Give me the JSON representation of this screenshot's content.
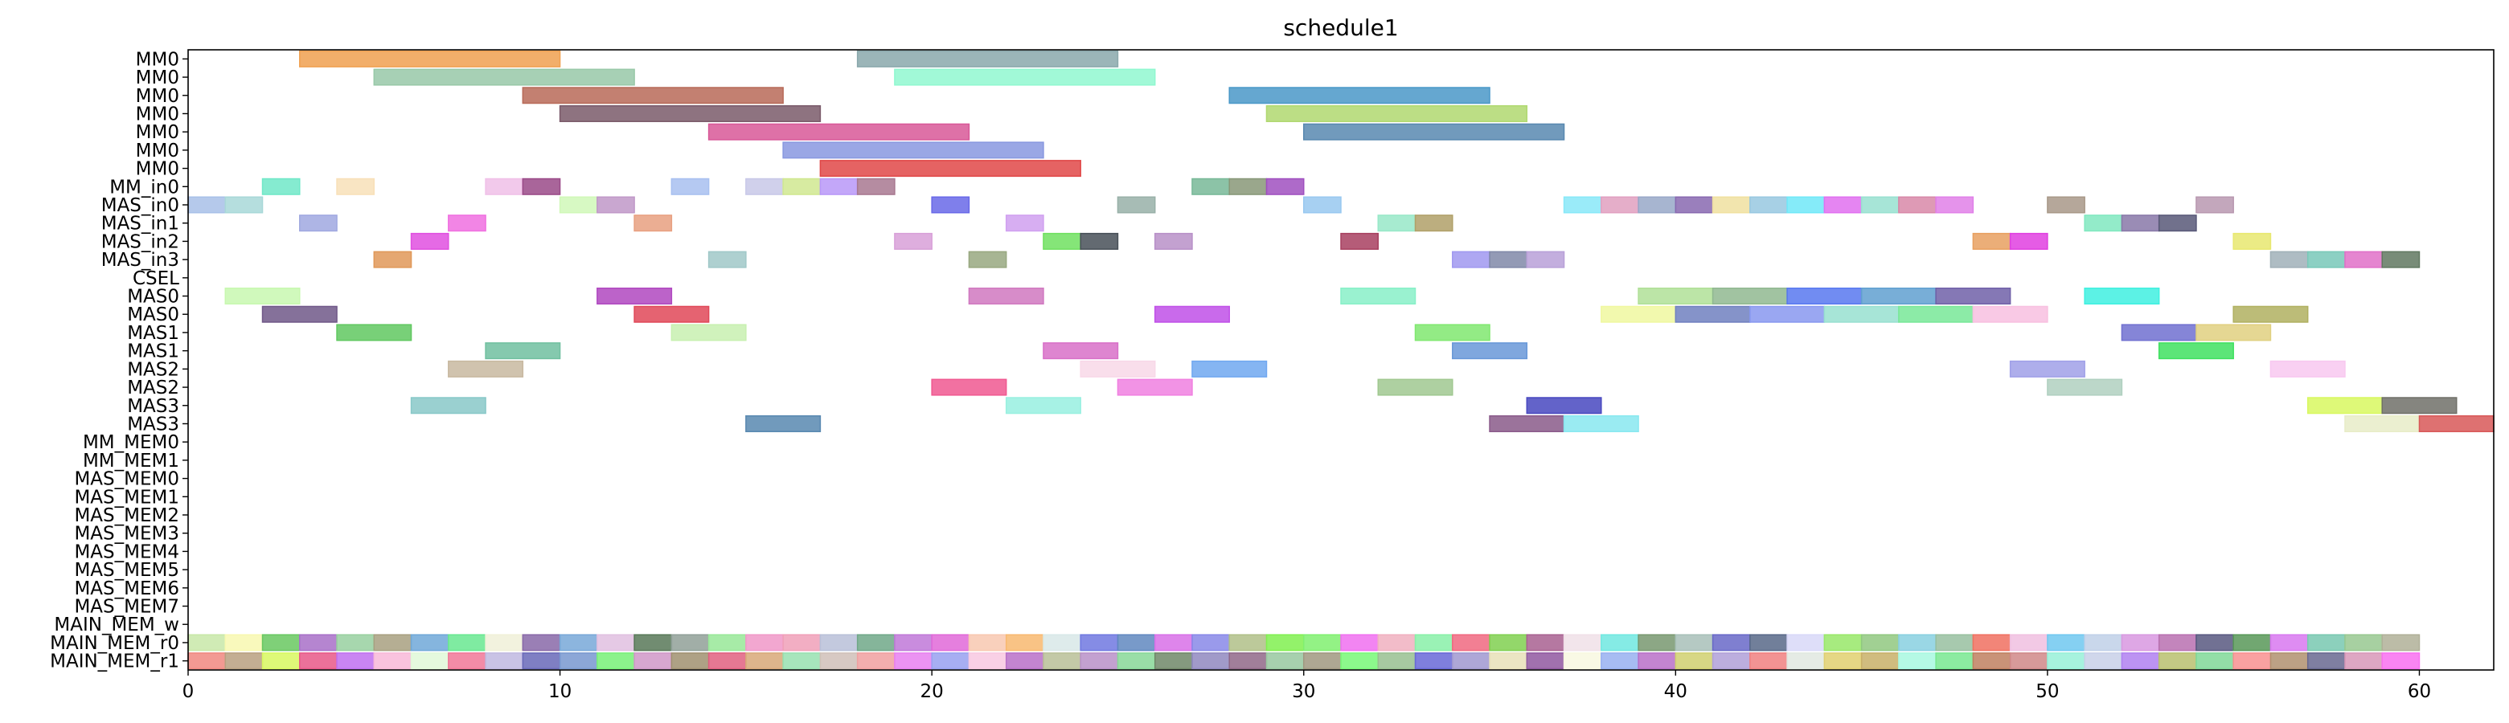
{
  "chart_data": {
    "type": "gantt",
    "title": "schedule1",
    "xlabel": "",
    "ylabel": "",
    "xlim": [
      0,
      62
    ],
    "x_ticks": [
      0,
      10,
      20,
      30,
      40,
      50,
      60
    ],
    "grid": false,
    "legend": "none",
    "rows": [
      "MM0",
      "MM0",
      "MM0",
      "MM0",
      "MM0",
      "MM0",
      "MM0",
      "MM_in0",
      "MAS_in0",
      "MAS_in1",
      "MAS_in2",
      "MAS_in3",
      "CSEL",
      "MAS0",
      "MAS0",
      "MAS1",
      "MAS1",
      "MAS2",
      "MAS2",
      "MAS3",
      "MAS3",
      "MM_MEM0",
      "MM_MEM1",
      "MAS_MEM0",
      "MAS_MEM1",
      "MAS_MEM2",
      "MAS_MEM3",
      "MAS_MEM4",
      "MAS_MEM5",
      "MAS_MEM6",
      "MAS_MEM7",
      "MAIN_MEM_w",
      "MAIN_MEM_r0",
      "MAIN_MEM_r1"
    ],
    "tasks": [
      {
        "row": 0,
        "start": 3,
        "end": 10,
        "color": "#f0a050"
      },
      {
        "row": 0,
        "start": 18,
        "end": 25,
        "color": "#8aa8ac"
      },
      {
        "row": 1,
        "start": 5,
        "end": 12,
        "color": "#98c8a8"
      },
      {
        "row": 1,
        "start": 19,
        "end": 26,
        "color": "#90f8d0"
      },
      {
        "row": 2,
        "start": 9,
        "end": 16,
        "color": "#b86a58"
      },
      {
        "row": 2,
        "start": 28,
        "end": 35,
        "color": "#4a98c8"
      },
      {
        "row": 3,
        "start": 10,
        "end": 17,
        "color": "#7a5a6a"
      },
      {
        "row": 3,
        "start": 29,
        "end": 36,
        "color": "#b0d870"
      },
      {
        "row": 4,
        "start": 14,
        "end": 21,
        "color": "#d85898"
      },
      {
        "row": 4,
        "start": 30,
        "end": 37,
        "color": "#5888b0"
      },
      {
        "row": 5,
        "start": 16,
        "end": 23,
        "color": "#8898e0"
      },
      {
        "row": 6,
        "start": 17,
        "end": 24,
        "color": "#e04848"
      },
      {
        "row": 7,
        "start": 2,
        "end": 3,
        "color": "#70e8c8"
      },
      {
        "row": 7,
        "start": 4,
        "end": 5,
        "color": "#f8e0b8"
      },
      {
        "row": 7,
        "start": 8,
        "end": 9,
        "color": "#f0c0e8"
      },
      {
        "row": 7,
        "start": 9,
        "end": 10,
        "color": "#9a4a88"
      },
      {
        "row": 7,
        "start": 13,
        "end": 14,
        "color": "#a8c0f0"
      },
      {
        "row": 7,
        "start": 15,
        "end": 16,
        "color": "#c8c8e8"
      },
      {
        "row": 7,
        "start": 16,
        "end": 17,
        "color": "#d0e890"
      },
      {
        "row": 7,
        "start": 17,
        "end": 18,
        "color": "#b898f8"
      },
      {
        "row": 7,
        "start": 18,
        "end": 19,
        "color": "#a87890"
      },
      {
        "row": 7,
        "start": 27,
        "end": 28,
        "color": "#78b898"
      },
      {
        "row": 7,
        "start": 28,
        "end": 29,
        "color": "#889878"
      },
      {
        "row": 7,
        "start": 29,
        "end": 30,
        "color": "#a050c0"
      },
      {
        "row": 8,
        "start": 0,
        "end": 1,
        "color": "#a8c0e8"
      },
      {
        "row": 8,
        "start": 1,
        "end": 2,
        "color": "#a8d8d8"
      },
      {
        "row": 8,
        "start": 10,
        "end": 11,
        "color": "#d0f8b8"
      },
      {
        "row": 8,
        "start": 11,
        "end": 12,
        "color": "#c098c8"
      },
      {
        "row": 8,
        "start": 20,
        "end": 21,
        "color": "#6868e8"
      },
      {
        "row": 8,
        "start": 25,
        "end": 26,
        "color": "#98b0a8"
      },
      {
        "row": 8,
        "start": 30,
        "end": 31,
        "color": "#98c8f0"
      },
      {
        "row": 8,
        "start": 37,
        "end": 38,
        "color": "#88e8f8"
      },
      {
        "row": 8,
        "start": 38,
        "end": 39,
        "color": "#e0a0c0"
      },
      {
        "row": 8,
        "start": 39,
        "end": 40,
        "color": "#98a8c8"
      },
      {
        "row": 8,
        "start": 40,
        "end": 41,
        "color": "#8868b0"
      },
      {
        "row": 8,
        "start": 41,
        "end": 42,
        "color": "#f0e0a0"
      },
      {
        "row": 8,
        "start": 42,
        "end": 43,
        "color": "#98c8e0"
      },
      {
        "row": 8,
        "start": 43,
        "end": 44,
        "color": "#70e8f8"
      },
      {
        "row": 8,
        "start": 44,
        "end": 45,
        "color": "#e070f0"
      },
      {
        "row": 8,
        "start": 45,
        "end": 46,
        "color": "#98e0d0"
      },
      {
        "row": 8,
        "start": 46,
        "end": 47,
        "color": "#d888a8"
      },
      {
        "row": 8,
        "start": 47,
        "end": 48,
        "color": "#e080e8"
      },
      {
        "row": 8,
        "start": 50,
        "end": 51,
        "color": "#a89888"
      },
      {
        "row": 8,
        "start": 54,
        "end": 55,
        "color": "#b898b0"
      },
      {
        "row": 9,
        "start": 3,
        "end": 4,
        "color": "#a0a8e0"
      },
      {
        "row": 9,
        "start": 7,
        "end": 8,
        "color": "#f070e0"
      },
      {
        "row": 9,
        "start": 12,
        "end": 13,
        "color": "#e8a080"
      },
      {
        "row": 9,
        "start": 22,
        "end": 23,
        "color": "#d0a0f0"
      },
      {
        "row": 9,
        "start": 32,
        "end": 33,
        "color": "#98e8c8"
      },
      {
        "row": 9,
        "start": 33,
        "end": 34,
        "color": "#b0a068"
      },
      {
        "row": 9,
        "start": 51,
        "end": 52,
        "color": "#80e8c0"
      },
      {
        "row": 9,
        "start": 52,
        "end": 53,
        "color": "#8878a8"
      },
      {
        "row": 9,
        "start": 53,
        "end": 54,
        "color": "#585878"
      },
      {
        "row": 10,
        "start": 6,
        "end": 7,
        "color": "#e050e0"
      },
      {
        "row": 10,
        "start": 19,
        "end": 20,
        "color": "#d8a0d8"
      },
      {
        "row": 10,
        "start": 23,
        "end": 24,
        "color": "#70e060"
      },
      {
        "row": 10,
        "start": 24,
        "end": 25,
        "color": "#485058"
      },
      {
        "row": 10,
        "start": 26,
        "end": 27,
        "color": "#b890c8"
      },
      {
        "row": 10,
        "start": 31,
        "end": 32,
        "color": "#a84060"
      },
      {
        "row": 10,
        "start": 48,
        "end": 49,
        "color": "#e8a060"
      },
      {
        "row": 10,
        "start": 49,
        "end": 50,
        "color": "#e040e0"
      },
      {
        "row": 10,
        "start": 55,
        "end": 56,
        "color": "#e8e870"
      },
      {
        "row": 11,
        "start": 5,
        "end": 6,
        "color": "#e09858"
      },
      {
        "row": 11,
        "start": 14,
        "end": 15,
        "color": "#a0c8c8"
      },
      {
        "row": 11,
        "start": 21,
        "end": 22,
        "color": "#98a880"
      },
      {
        "row": 11,
        "start": 34,
        "end": 35,
        "color": "#a098f0"
      },
      {
        "row": 11,
        "start": 35,
        "end": 36,
        "color": "#8088a8"
      },
      {
        "row": 11,
        "start": 36,
        "end": 37,
        "color": "#b8a0d8"
      },
      {
        "row": 11,
        "start": 56,
        "end": 57,
        "color": "#a0b0b8"
      },
      {
        "row": 11,
        "start": 57,
        "end": 58,
        "color": "#78c8b8"
      },
      {
        "row": 11,
        "start": 58,
        "end": 59,
        "color": "#e070c8"
      },
      {
        "row": 11,
        "start": 59,
        "end": 60,
        "color": "#607860"
      },
      {
        "row": 13,
        "start": 1,
        "end": 3,
        "color": "#c8f8b0"
      },
      {
        "row": 13,
        "start": 11,
        "end": 13,
        "color": "#b048c0"
      },
      {
        "row": 13,
        "start": 21,
        "end": 23,
        "color": "#d078c0"
      },
      {
        "row": 13,
        "start": 31,
        "end": 33,
        "color": "#88f0c8"
      },
      {
        "row": 13,
        "start": 39,
        "end": 41,
        "color": "#b0e098"
      },
      {
        "row": 13,
        "start": 41,
        "end": 43,
        "color": "#90b890"
      },
      {
        "row": 13,
        "start": 43,
        "end": 45,
        "color": "#5878f0"
      },
      {
        "row": 13,
        "start": 45,
        "end": 47,
        "color": "#60a0d0"
      },
      {
        "row": 13,
        "start": 47,
        "end": 49,
        "color": "#7060a8"
      },
      {
        "row": 13,
        "start": 51,
        "end": 53,
        "color": "#40f0e0"
      },
      {
        "row": 14,
        "start": 2,
        "end": 4,
        "color": "#705888"
      },
      {
        "row": 14,
        "start": 12,
        "end": 14,
        "color": "#e04858"
      },
      {
        "row": 14,
        "start": 26,
        "end": 28,
        "color": "#c050e8"
      },
      {
        "row": 14,
        "start": 38,
        "end": 40,
        "color": "#f0f8a0"
      },
      {
        "row": 14,
        "start": 40,
        "end": 42,
        "color": "#7080c0"
      },
      {
        "row": 14,
        "start": 42,
        "end": 44,
        "color": "#8898f0"
      },
      {
        "row": 14,
        "start": 44,
        "end": 46,
        "color": "#98e0d0"
      },
      {
        "row": 14,
        "start": 46,
        "end": 48,
        "color": "#78e898"
      },
      {
        "row": 14,
        "start": 48,
        "end": 50,
        "color": "#f8c0e0"
      },
      {
        "row": 14,
        "start": 55,
        "end": 57,
        "color": "#b0b060"
      },
      {
        "row": 15,
        "start": 4,
        "end": 6,
        "color": "#60c860"
      },
      {
        "row": 15,
        "start": 13,
        "end": 15,
        "color": "#c8f0b0"
      },
      {
        "row": 15,
        "start": 33,
        "end": 35,
        "color": "#80e870"
      },
      {
        "row": 15,
        "start": 52,
        "end": 54,
        "color": "#7070d0"
      },
      {
        "row": 15,
        "start": 54,
        "end": 56,
        "color": "#e0d080"
      },
      {
        "row": 16,
        "start": 8,
        "end": 10,
        "color": "#70c0a0"
      },
      {
        "row": 16,
        "start": 23,
        "end": 25,
        "color": "#d870c8"
      },
      {
        "row": 16,
        "start": 34,
        "end": 36,
        "color": "#6898d8"
      },
      {
        "row": 16,
        "start": 53,
        "end": 55,
        "color": "#40e060"
      },
      {
        "row": 17,
        "start": 7,
        "end": 9,
        "color": "#c8b8a0"
      },
      {
        "row": 17,
        "start": 24,
        "end": 26,
        "color": "#f8d8e8"
      },
      {
        "row": 17,
        "start": 27,
        "end": 29,
        "color": "#70a8f0"
      },
      {
        "row": 17,
        "start": 49,
        "end": 51,
        "color": "#a0a0e8"
      },
      {
        "row": 17,
        "start": 56,
        "end": 58,
        "color": "#f8c8f0"
      },
      {
        "row": 18,
        "start": 20,
        "end": 22,
        "color": "#f05890"
      },
      {
        "row": 18,
        "start": 25,
        "end": 27,
        "color": "#f080e0"
      },
      {
        "row": 18,
        "start": 32,
        "end": 34,
        "color": "#a0c890"
      },
      {
        "row": 18,
        "start": 50,
        "end": 52,
        "color": "#b0d0c0"
      },
      {
        "row": 19,
        "start": 6,
        "end": 8,
        "color": "#88c8c8"
      },
      {
        "row": 19,
        "start": 22,
        "end": 24,
        "color": "#98f0e0"
      },
      {
        "row": 19,
        "start": 36,
        "end": 38,
        "color": "#4848c0"
      },
      {
        "row": 19,
        "start": 57,
        "end": 59,
        "color": "#d8f860"
      },
      {
        "row": 19,
        "start": 59,
        "end": 61,
        "color": "#707068"
      },
      {
        "row": 20,
        "start": 15,
        "end": 17,
        "color": "#5888b0"
      },
      {
        "row": 20,
        "start": 35,
        "end": 37,
        "color": "#8a5a8a"
      },
      {
        "row": 20,
        "start": 37,
        "end": 39,
        "color": "#88e8f0"
      },
      {
        "row": 20,
        "start": 58,
        "end": 60,
        "color": "#e8ecc8"
      },
      {
        "row": 20,
        "start": 60,
        "end": 62,
        "color": "#d85858"
      }
    ],
    "main_mem_r0_colors": [
      "#c8e8a8",
      "#f8f8b0",
      "#68c860",
      "#a870c8",
      "#98d0a0",
      "#a8a080",
      "#70a8d8",
      "#68e890",
      "#f0f0d8",
      "#8868a8",
      "#78a8d8",
      "#e0c0e0",
      "#587858",
      "#90a098",
      "#98e898",
      "#f098c8",
      "#f0a0b8",
      "#b8c0d8",
      "#70a888",
      "#c078d8",
      "#e068d8",
      "#f8c8b0",
      "#f8b870",
      "#d8e8e8",
      "#7078e0",
      "#6088c0",
      "#d870e8",
      "#8888e8",
      "#b0c088",
      "#80f050",
      "#80f070",
      "#f070f0",
      "#f0b0c0",
      "#88f0a8",
      "#f06880",
      "#80d050",
      "#a86090",
      "#f0e0e8",
      "#70e8e0",
      "#789870",
      "#a8c0b8",
      "#6868c8",
      "#586888",
      "#d8d8f8",
      "#98e868",
      "#90c880",
      "#88d0e0",
      "#98c0a0",
      "#f07060",
      "#f0c0e0",
      "#70c8f0",
      "#c0d0e8",
      "#d898e0",
      "#b870b0",
      "#585880",
      "#589858",
      "#d878f0",
      "#78c8b0",
      "#98c890",
      "#b0b098"
    ],
    "main_mem_r1_colors": [
      "#f08880",
      "#b8a080",
      "#d8f860",
      "#e85888",
      "#c070f0",
      "#f8b8d8",
      "#e0f8d8",
      "#f07898",
      "#c0b8e0",
      "#6868b8",
      "#7898d0",
      "#78f078",
      "#d098c8",
      "#a09070",
      "#e06080",
      "#d8a878",
      "#98e0b0",
      "#d0c0b8",
      "#f0a0a0",
      "#e880f0",
      "#98a0f0",
      "#f8c8e0",
      "#b870c8",
      "#b8c098",
      "#b890c8",
      "#88d898",
      "#708868",
      "#9088c0",
      "#906888",
      "#98c8a0",
      "#a09880",
      "#78f878",
      "#98c090",
      "#6868d8",
      "#a098d0",
      "#e8e0b8",
      "#9058a0",
      "#f8f8e0",
      "#98b0f0",
      "#b870c8",
      "#d0d070",
      "#b0a0d8",
      "#f08080",
      "#e0e8e0",
      "#e0d070",
      "#c8b068",
      "#a8f8e0",
      "#78e890",
      "#c08060",
      "#d08888",
      "#98f0d8",
      "#c8d0e8",
      "#b080f0",
      "#b8c070",
      "#80d898",
      "#f89090",
      "#b09070",
      "#686890",
      "#d898b8",
      "#f870f0"
    ]
  }
}
